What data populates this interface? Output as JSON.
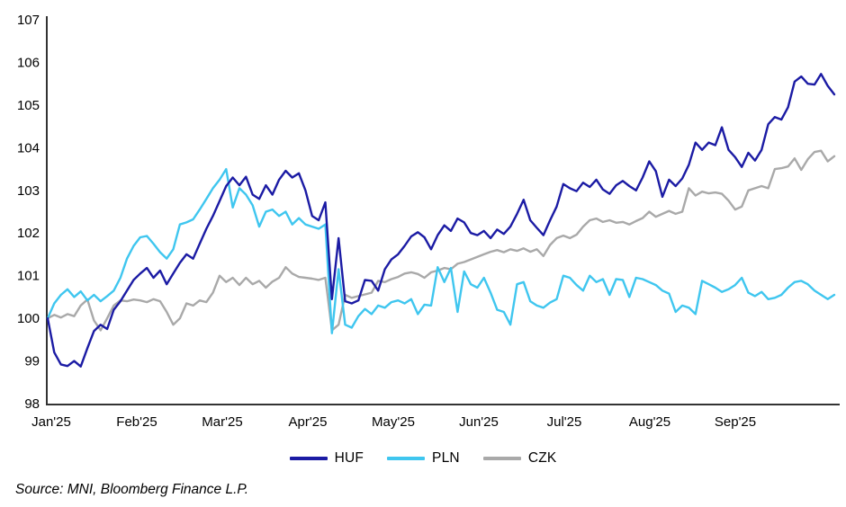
{
  "chart": {
    "source_note": "Source: MNI, Bloomberg Finance L.P."
  },
  "chart_data": {
    "type": "line",
    "title": "",
    "xlabel": "",
    "ylabel": "",
    "ylim": [
      98,
      107
    ],
    "y_ticks": [
      98,
      99,
      100,
      101,
      102,
      103,
      104,
      105,
      106,
      107
    ],
    "x_tick_labels": [
      "Jan'25",
      "Feb'25",
      "Mar'25",
      "Apr'25",
      "May'25",
      "Jun'25",
      "Jul'25",
      "Aug'25",
      "Sep'25"
    ],
    "x_range_note": "daily values, Jan 2025 through early Oct 2025, indexed to 100",
    "grid": false,
    "legend_position": "bottom",
    "axis_color": "#333333",
    "series": [
      {
        "name": "CZK",
        "color": "#a9a9a9",
        "values": [
          100.0,
          100.08,
          100.02,
          100.1,
          100.05,
          100.3,
          100.44,
          99.95,
          99.72,
          100.0,
          100.3,
          100.42,
          100.4,
          100.44,
          100.42,
          100.38,
          100.45,
          100.4,
          100.15,
          99.85,
          100.0,
          100.35,
          100.3,
          100.42,
          100.38,
          100.6,
          101.0,
          100.85,
          100.95,
          100.78,
          100.95,
          100.8,
          100.88,
          100.72,
          100.86,
          100.95,
          101.2,
          101.05,
          100.97,
          100.95,
          100.93,
          100.9,
          100.95,
          99.72,
          99.85,
          100.55,
          100.48,
          100.52,
          100.56,
          100.6,
          100.88,
          100.85,
          100.92,
          100.97,
          101.05,
          101.08,
          101.04,
          100.95,
          101.08,
          101.12,
          101.18,
          101.15,
          101.28,
          101.32,
          101.38,
          101.44,
          101.5,
          101.56,
          101.6,
          101.55,
          101.62,
          101.58,
          101.64,
          101.56,
          101.62,
          101.46,
          101.72,
          101.88,
          101.94,
          101.88,
          101.96,
          102.15,
          102.3,
          102.34,
          102.26,
          102.3,
          102.24,
          102.26,
          102.2,
          102.28,
          102.35,
          102.5,
          102.38,
          102.45,
          102.52,
          102.45,
          102.5,
          103.05,
          102.88,
          102.97,
          102.93,
          102.95,
          102.92,
          102.76,
          102.55,
          102.62,
          103.0,
          103.05,
          103.1,
          103.05,
          103.5,
          103.52,
          103.56,
          103.75,
          103.48,
          103.73,
          103.9,
          103.93,
          103.68,
          103.8
        ]
      },
      {
        "name": "PLN",
        "color": "#3fc6ef",
        "values": [
          100.0,
          100.35,
          100.55,
          100.68,
          100.5,
          100.63,
          100.42,
          100.55,
          100.4,
          100.52,
          100.65,
          100.95,
          101.4,
          101.7,
          101.9,
          101.93,
          101.75,
          101.55,
          101.4,
          101.62,
          102.2,
          102.25,
          102.32,
          102.55,
          102.8,
          103.05,
          103.25,
          103.5,
          102.6,
          103.05,
          102.9,
          102.65,
          102.15,
          102.5,
          102.55,
          102.4,
          102.5,
          102.2,
          102.35,
          102.2,
          102.15,
          102.1,
          102.2,
          99.65,
          101.15,
          99.85,
          99.78,
          100.05,
          100.22,
          100.1,
          100.3,
          100.25,
          100.38,
          100.42,
          100.35,
          100.45,
          100.1,
          100.32,
          100.3,
          101.2,
          100.85,
          101.18,
          100.15,
          101.1,
          100.8,
          100.72,
          100.95,
          100.6,
          100.2,
          100.15,
          99.85,
          100.8,
          100.85,
          100.4,
          100.3,
          100.25,
          100.37,
          100.45,
          101.0,
          100.95,
          100.78,
          100.65,
          101.0,
          100.85,
          100.92,
          100.55,
          100.92,
          100.9,
          100.5,
          100.95,
          100.92,
          100.85,
          100.78,
          100.65,
          100.58,
          100.15,
          100.3,
          100.25,
          100.1,
          100.88,
          100.8,
          100.72,
          100.62,
          100.68,
          100.78,
          100.95,
          100.6,
          100.52,
          100.62,
          100.45,
          100.48,
          100.55,
          100.72,
          100.85,
          100.88,
          100.8,
          100.65,
          100.55,
          100.45,
          100.55
        ]
      },
      {
        "name": "HUF",
        "color": "#1b1ba4",
        "values": [
          100.0,
          99.2,
          98.92,
          98.88,
          99.0,
          98.87,
          99.3,
          99.7,
          99.85,
          99.75,
          100.2,
          100.4,
          100.65,
          100.9,
          101.05,
          101.18,
          100.95,
          101.12,
          100.8,
          101.05,
          101.3,
          101.5,
          101.4,
          101.75,
          102.1,
          102.4,
          102.75,
          103.1,
          103.3,
          103.12,
          103.32,
          102.9,
          102.8,
          103.12,
          102.9,
          103.25,
          103.46,
          103.3,
          103.4,
          103.0,
          102.4,
          102.3,
          102.72,
          100.45,
          101.88,
          100.4,
          100.35,
          100.42,
          100.9,
          100.88,
          100.65,
          101.15,
          101.38,
          101.5,
          101.7,
          101.92,
          102.02,
          101.9,
          101.62,
          101.95,
          102.18,
          102.05,
          102.34,
          102.25,
          102.0,
          101.95,
          102.05,
          101.88,
          102.08,
          101.98,
          102.15,
          102.45,
          102.78,
          102.3,
          102.12,
          101.95,
          102.3,
          102.62,
          103.15,
          103.05,
          102.98,
          103.18,
          103.08,
          103.25,
          103.02,
          102.92,
          103.12,
          103.22,
          103.1,
          103.0,
          103.3,
          103.68,
          103.45,
          102.85,
          103.25,
          103.1,
          103.28,
          103.6,
          104.12,
          103.95,
          104.12,
          104.06,
          104.48,
          103.95,
          103.78,
          103.55,
          103.88,
          103.7,
          103.95,
          104.55,
          104.72,
          104.66,
          104.95,
          105.55,
          105.67,
          105.5,
          105.48,
          105.73,
          105.45,
          105.25
        ]
      }
    ],
    "legend_order": [
      "HUF",
      "PLN",
      "CZK"
    ]
  }
}
